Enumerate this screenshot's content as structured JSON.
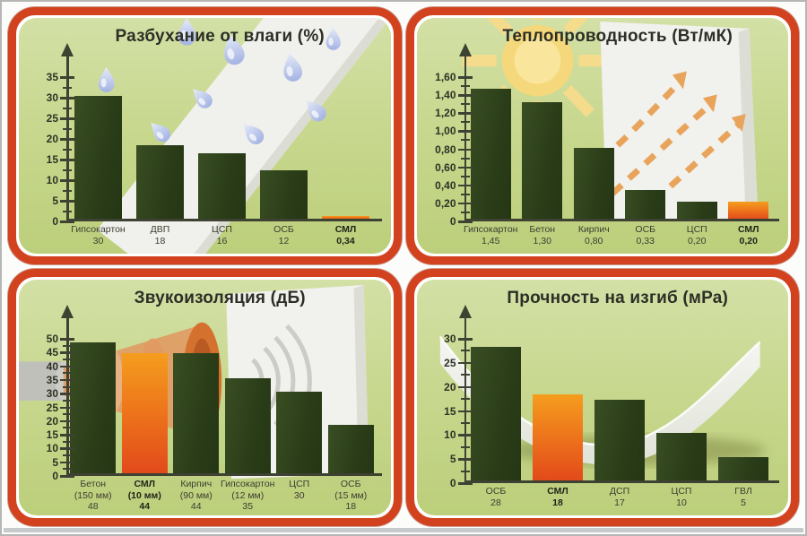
{
  "colors": {
    "panel_border_red": "#d2421f",
    "panel_background_green": "#c8d88f",
    "bar_green": "#2e401c",
    "bar_orange_top": "#f59d1e",
    "bar_orange_bottom": "#e2491b",
    "axis": "#3d4233",
    "title_text": "#2c2f26"
  },
  "highlight_product": "СМЛ",
  "chart_data": [
    {
      "type": "bar",
      "title": "Разбухание от влаги (%)",
      "categories": [
        "Гипсокартон",
        "ДВП",
        "ЦСП",
        "ОСБ",
        "СМЛ"
      ],
      "sublabels": [
        "",
        "",
        "",
        "",
        ""
      ],
      "values": [
        30,
        18,
        16,
        12,
        0.34
      ],
      "value_labels": [
        "30",
        "18",
        "16",
        "12",
        "0,34"
      ],
      "highlight_index": 4,
      "yticks": [
        0,
        5,
        10,
        15,
        20,
        25,
        30,
        35
      ],
      "ytick_labels": [
        "0",
        "5",
        "10",
        "15",
        "20",
        "25",
        "30",
        "35"
      ],
      "ylim": [
        0,
        35
      ],
      "grid": false,
      "legend": "none",
      "bar_width_ratio": 0.76,
      "decoration": "rain drops on tilted white board"
    },
    {
      "type": "bar",
      "title": "Теплопроводность (Вт/мК)",
      "categories": [
        "Гипсокартон",
        "Бетон",
        "Кирпич",
        "ОСБ",
        "ЦСП",
        "СМЛ"
      ],
      "sublabels": [
        "",
        "",
        "",
        "",
        "",
        ""
      ],
      "values": [
        1.45,
        1.3,
        0.8,
        0.33,
        0.2,
        0.2
      ],
      "value_labels": [
        "1,45",
        "1,30",
        "0,80",
        "0,33",
        "0,20",
        "0,20"
      ],
      "highlight_index": 5,
      "yticks": [
        0,
        0.2,
        0.4,
        0.6,
        0.8,
        1.0,
        1.2,
        1.4,
        1.6
      ],
      "ytick_labels": [
        "0",
        "0,20",
        "0,40",
        "0,60",
        "0,80",
        "1,00",
        "1,20",
        "1,40",
        "1,60"
      ],
      "ylim": [
        0,
        1.6
      ],
      "grid": false,
      "legend": "none",
      "bar_width_ratio": 0.78,
      "decoration": "sun and white board with dashed heat arrows"
    },
    {
      "type": "bar",
      "title": "Звукоизоляция (дБ)",
      "categories": [
        "Бетон",
        "СМЛ",
        "Кирпич",
        "Гипсокартон",
        "ЦСП",
        "ОСБ"
      ],
      "sublabels": [
        "(150 мм)",
        "(10 мм)",
        "(90 мм)",
        "(12 мм)",
        "",
        "(15 мм)"
      ],
      "values": [
        48,
        44,
        44,
        35,
        30,
        18
      ],
      "value_labels": [
        "48",
        "44",
        "44",
        "35",
        "30",
        "18"
      ],
      "highlight_index": 1,
      "yticks": [
        0,
        5,
        10,
        15,
        20,
        25,
        30,
        35,
        40,
        45,
        50
      ],
      "ytick_labels": [
        "0",
        "5",
        "10",
        "15",
        "20",
        "25",
        "30",
        "35",
        "40",
        "45",
        "50"
      ],
      "ylim": [
        0,
        50
      ],
      "grid": false,
      "legend": "none",
      "bar_width_ratio": 0.88,
      "decoration": "loudspeaker horn with sound waves and white board"
    },
    {
      "type": "bar",
      "title": "Прочность на изгиб (мРа)",
      "categories": [
        "ОСБ",
        "СМЛ",
        "ДСП",
        "ЦСП",
        "ГВЛ"
      ],
      "sublabels": [
        "",
        "",
        "",
        "",
        ""
      ],
      "values": [
        28,
        18,
        17,
        10,
        5
      ],
      "value_labels": [
        "28",
        "18",
        "17",
        "10",
        "5"
      ],
      "highlight_index": 1,
      "yticks": [
        0,
        5,
        10,
        15,
        20,
        25,
        30
      ],
      "ytick_labels": [
        "0",
        "5",
        "10",
        "15",
        "20",
        "25",
        "30"
      ],
      "ylim": [
        0,
        30
      ],
      "grid": false,
      "legend": "none",
      "bar_width_ratio": 0.8,
      "decoration": "bent white sheet with shadow"
    }
  ]
}
